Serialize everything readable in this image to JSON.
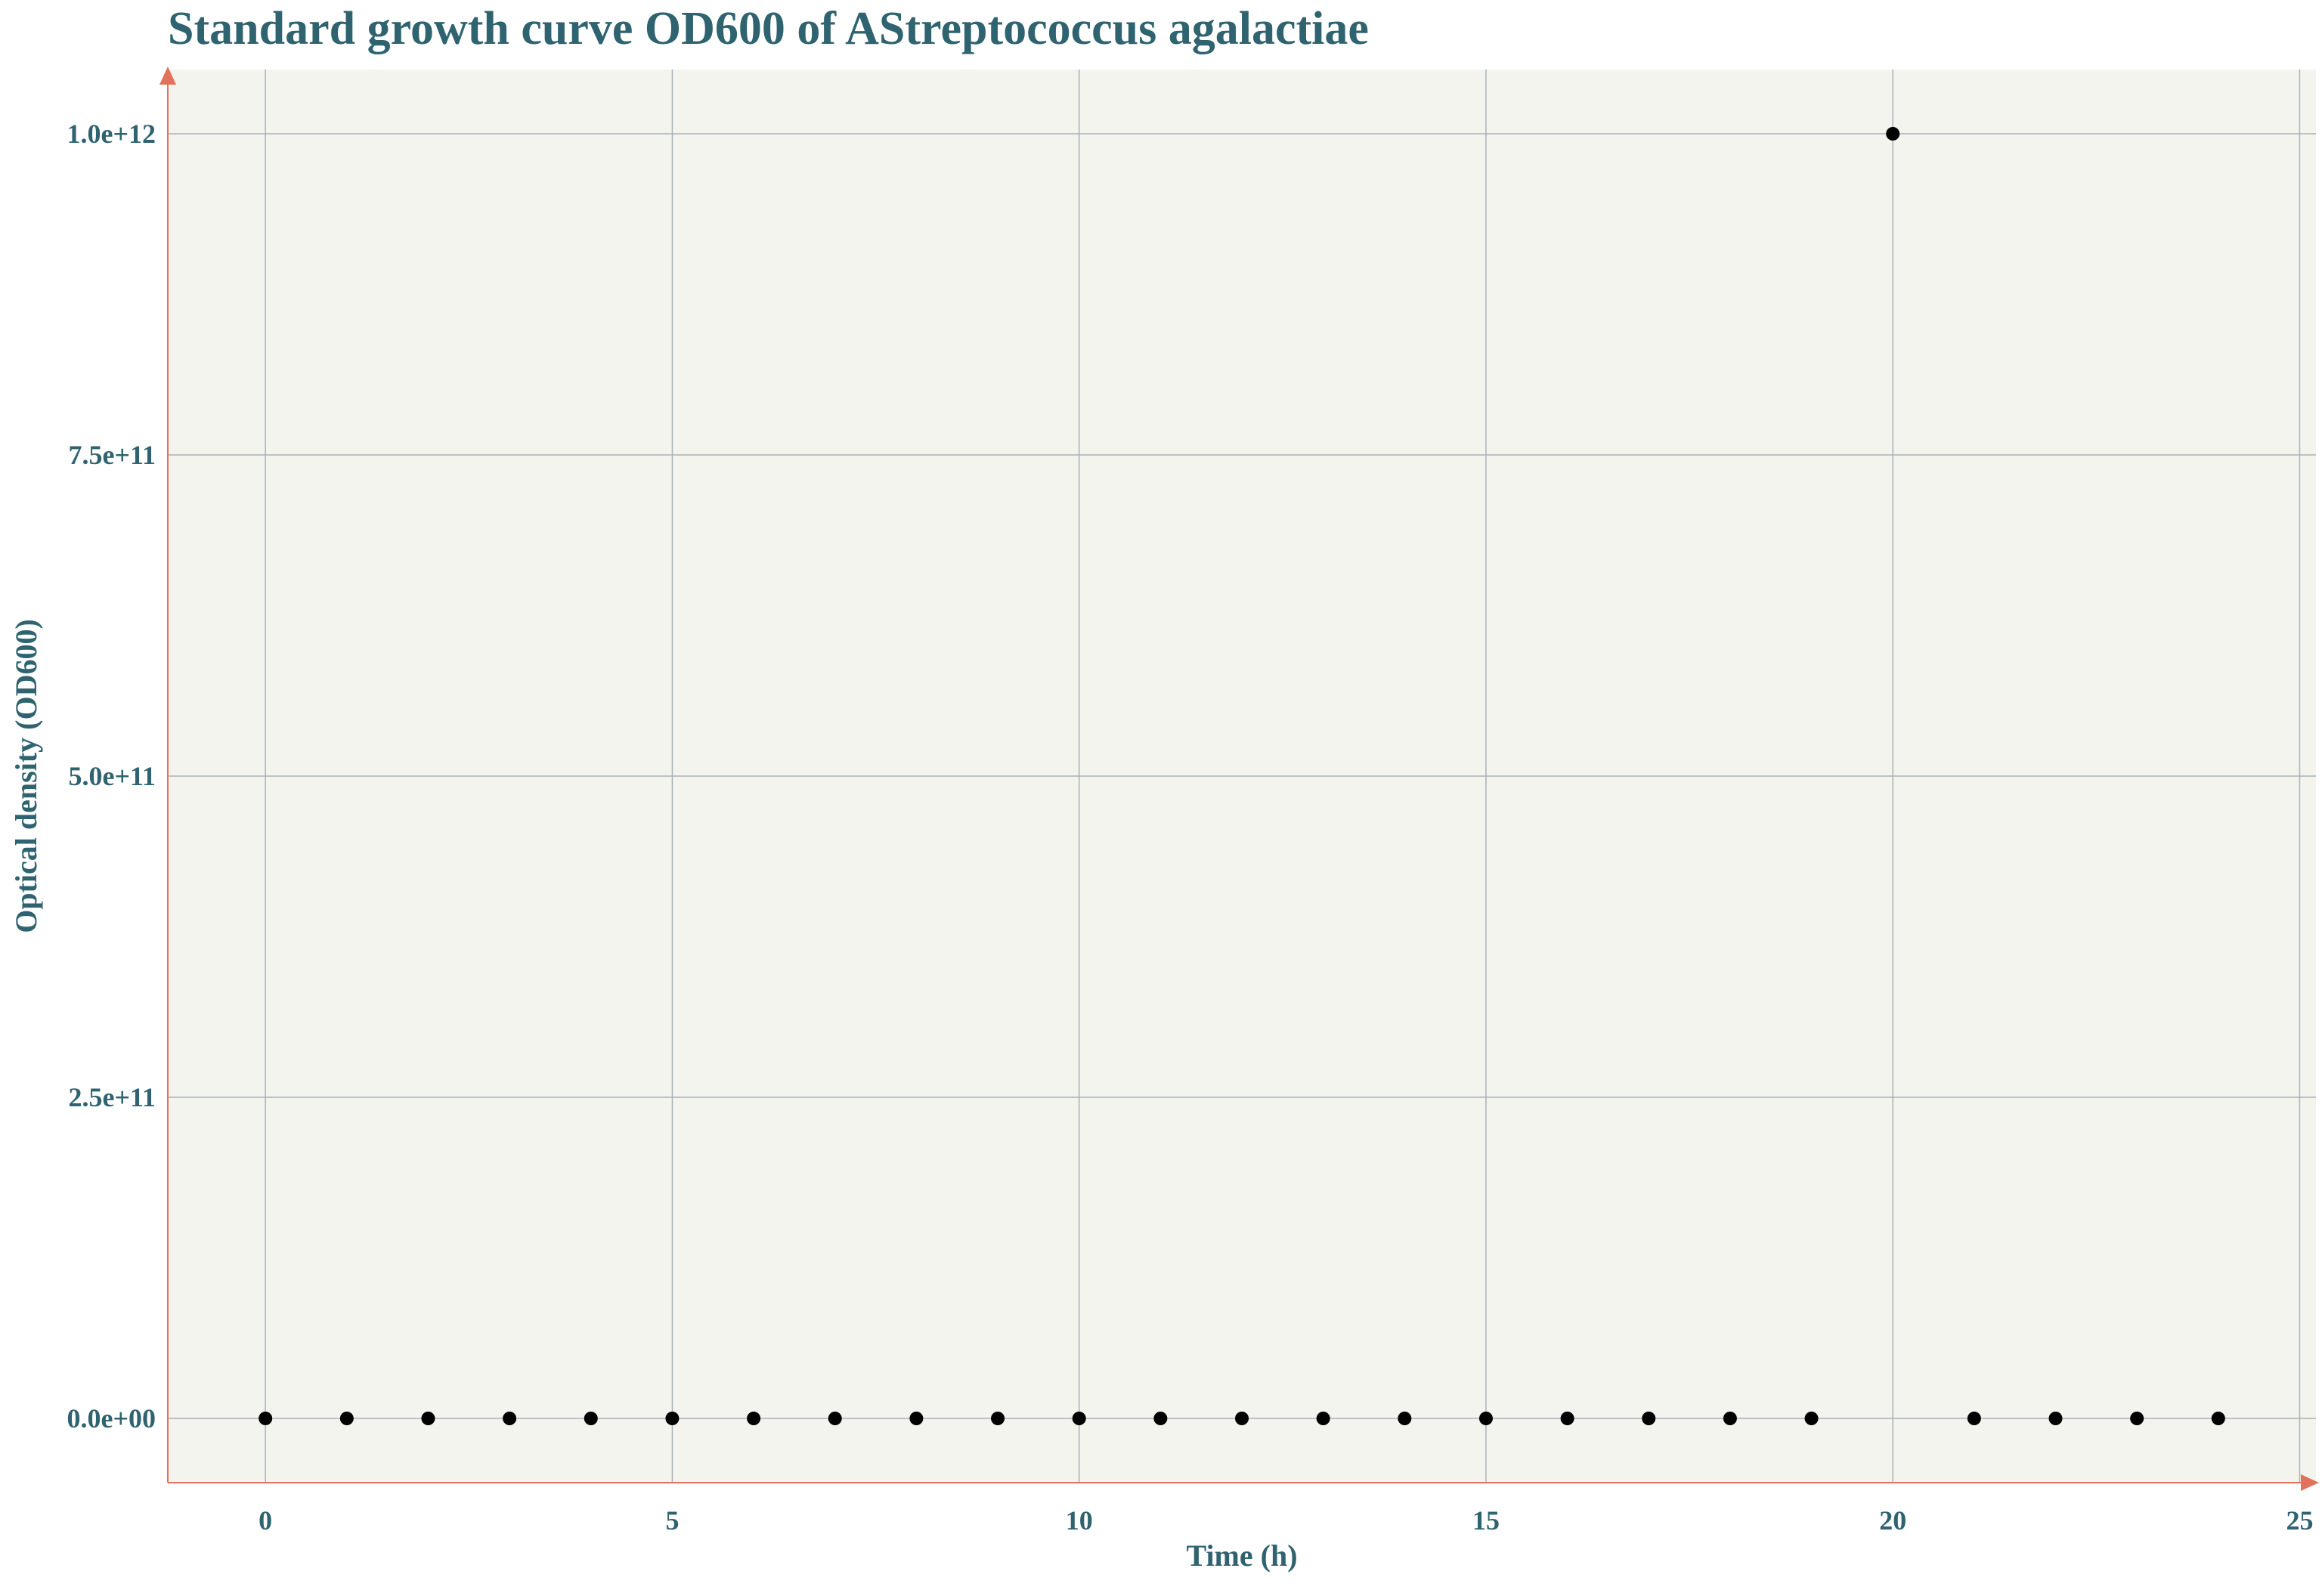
{
  "chart_data": {
    "type": "scatter",
    "title": "Standard growth curve OD600 of AStreptococcus agalactiae",
    "xlabel": "Time (h)",
    "ylabel": "Optical density (OD600)",
    "xlim": [
      -1.2,
      25.2
    ],
    "ylim": [
      -50000000000,
      1050000000000
    ],
    "x_ticks": [
      0,
      5,
      10,
      15,
      20,
      25
    ],
    "x_tick_labels": [
      "0",
      "5",
      "10",
      "15",
      "20",
      "25"
    ],
    "y_ticks": [
      0,
      250000000000,
      500000000000,
      750000000000,
      1000000000000
    ],
    "y_tick_labels": [
      "0.0e+00",
      "2.5e+11",
      "5.0e+11",
      "7.5e+11",
      "1.0e+12"
    ],
    "grid": true,
    "colors": {
      "plot_background": "#f4f4ef",
      "grid": "#a9b1b6",
      "axis": "#e2725b",
      "text": "#2f6370",
      "point": "#000000"
    },
    "x": [
      0,
      1,
      2,
      3,
      4,
      5,
      6,
      7,
      8,
      9,
      10,
      11,
      12,
      13,
      14,
      15,
      16,
      17,
      18,
      19,
      20,
      21,
      22,
      23,
      24
    ],
    "y": [
      0,
      0,
      0,
      0,
      0,
      0,
      0,
      0,
      0,
      0,
      0,
      0,
      0,
      0,
      0,
      0,
      0,
      0,
      0,
      0,
      1000000000000,
      0,
      0,
      0,
      0
    ]
  }
}
